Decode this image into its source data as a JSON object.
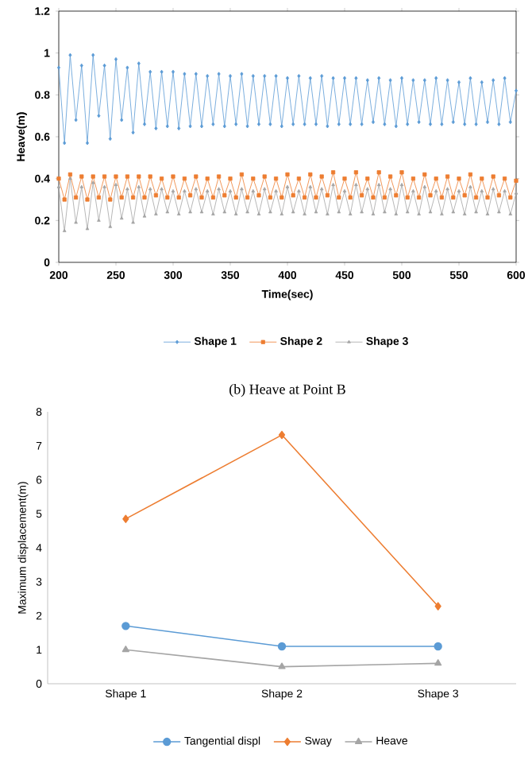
{
  "chart_data": [
    {
      "type": "line",
      "xlabel": "Time(sec)",
      "ylabel": "Heave(m)",
      "x": [
        200,
        205,
        210,
        215,
        220,
        225,
        230,
        235,
        240,
        245,
        250,
        255,
        260,
        265,
        270,
        275,
        280,
        285,
        290,
        295,
        300,
        305,
        310,
        315,
        320,
        325,
        330,
        335,
        340,
        345,
        350,
        355,
        360,
        365,
        370,
        375,
        380,
        385,
        390,
        395,
        400,
        405,
        410,
        415,
        420,
        425,
        430,
        435,
        440,
        445,
        450,
        455,
        460,
        465,
        470,
        475,
        480,
        485,
        490,
        495,
        500,
        505,
        510,
        515,
        520,
        525,
        530,
        535,
        540,
        545,
        550,
        555,
        560,
        565,
        570,
        575,
        580,
        585,
        590,
        595,
        600
      ],
      "series": [
        {
          "name": "Shape 1",
          "color": "#5b9bd5",
          "marker": "diamond",
          "values": [
            0.93,
            0.57,
            0.99,
            0.68,
            0.94,
            0.57,
            0.99,
            0.7,
            0.94,
            0.59,
            0.97,
            0.68,
            0.93,
            0.62,
            0.95,
            0.66,
            0.91,
            0.64,
            0.91,
            0.65,
            0.91,
            0.64,
            0.9,
            0.65,
            0.9,
            0.65,
            0.89,
            0.66,
            0.9,
            0.65,
            0.89,
            0.66,
            0.9,
            0.65,
            0.89,
            0.66,
            0.89,
            0.66,
            0.89,
            0.65,
            0.88,
            0.66,
            0.89,
            0.66,
            0.88,
            0.66,
            0.89,
            0.65,
            0.88,
            0.66,
            0.88,
            0.66,
            0.88,
            0.66,
            0.87,
            0.67,
            0.88,
            0.66,
            0.87,
            0.65,
            0.88,
            0.66,
            0.87,
            0.67,
            0.87,
            0.66,
            0.88,
            0.66,
            0.87,
            0.67,
            0.86,
            0.66,
            0.88,
            0.66,
            0.86,
            0.67,
            0.87,
            0.66,
            0.88,
            0.67,
            0.82
          ]
        },
        {
          "name": "Shape 2",
          "color": "#ed7d31",
          "marker": "square",
          "values": [
            0.4,
            0.3,
            0.42,
            0.31,
            0.41,
            0.3,
            0.41,
            0.31,
            0.41,
            0.3,
            0.41,
            0.31,
            0.41,
            0.31,
            0.41,
            0.31,
            0.41,
            0.32,
            0.4,
            0.31,
            0.41,
            0.31,
            0.4,
            0.32,
            0.41,
            0.31,
            0.4,
            0.31,
            0.41,
            0.32,
            0.4,
            0.31,
            0.42,
            0.31,
            0.4,
            0.32,
            0.41,
            0.31,
            0.4,
            0.31,
            0.42,
            0.32,
            0.4,
            0.31,
            0.42,
            0.31,
            0.41,
            0.32,
            0.43,
            0.31,
            0.4,
            0.31,
            0.43,
            0.32,
            0.4,
            0.31,
            0.43,
            0.31,
            0.41,
            0.32,
            0.43,
            0.31,
            0.4,
            0.31,
            0.42,
            0.32,
            0.4,
            0.31,
            0.41,
            0.31,
            0.4,
            0.32,
            0.42,
            0.31,
            0.4,
            0.31,
            0.41,
            0.32,
            0.4,
            0.31,
            0.39
          ]
        },
        {
          "name": "Shape 3",
          "color": "#a5a5a5",
          "marker": "triangle",
          "values": [
            0.36,
            0.15,
            0.4,
            0.19,
            0.36,
            0.16,
            0.38,
            0.2,
            0.36,
            0.17,
            0.37,
            0.21,
            0.35,
            0.19,
            0.36,
            0.22,
            0.35,
            0.23,
            0.35,
            0.24,
            0.34,
            0.23,
            0.34,
            0.24,
            0.35,
            0.24,
            0.34,
            0.23,
            0.35,
            0.24,
            0.34,
            0.23,
            0.35,
            0.24,
            0.34,
            0.23,
            0.35,
            0.24,
            0.34,
            0.23,
            0.36,
            0.24,
            0.34,
            0.23,
            0.36,
            0.24,
            0.35,
            0.23,
            0.37,
            0.24,
            0.34,
            0.23,
            0.37,
            0.24,
            0.35,
            0.23,
            0.37,
            0.24,
            0.35,
            0.23,
            0.37,
            0.24,
            0.34,
            0.23,
            0.36,
            0.24,
            0.34,
            0.23,
            0.35,
            0.24,
            0.34,
            0.23,
            0.36,
            0.24,
            0.34,
            0.23,
            0.35,
            0.24,
            0.34,
            0.23,
            0.33
          ]
        }
      ],
      "xlim": [
        200,
        600
      ],
      "xticks": [
        200,
        250,
        300,
        350,
        400,
        450,
        500,
        550,
        600
      ],
      "ylim": [
        0,
        1.2
      ],
      "yticks": [
        0,
        0.2,
        0.4,
        0.6,
        0.8,
        1,
        1.2
      ],
      "legend": "bottom",
      "annotations": [
        "(b) Heave at Point B"
      ]
    },
    {
      "type": "line",
      "ylabel": "Maximum displacement(m)",
      "categories": [
        "Shape 1",
        "Shape 2",
        "Shape 3"
      ],
      "series": [
        {
          "name": "Tangential displ",
          "color": "#5b9bd5",
          "marker": "circle",
          "values": [
            1.7,
            1.1,
            1.1
          ]
        },
        {
          "name": "Sway",
          "color": "#ed7d31",
          "marker": "diamond",
          "values": [
            4.85,
            7.32,
            2.28
          ]
        },
        {
          "name": "Heave",
          "color": "#a5a5a5",
          "marker": "triangle",
          "values": [
            1.0,
            0.5,
            0.6
          ]
        }
      ],
      "ylim": [
        0,
        8
      ],
      "yticks": [
        0,
        1,
        2,
        3,
        4,
        5,
        6,
        7,
        8
      ],
      "legend": "bottom"
    }
  ]
}
